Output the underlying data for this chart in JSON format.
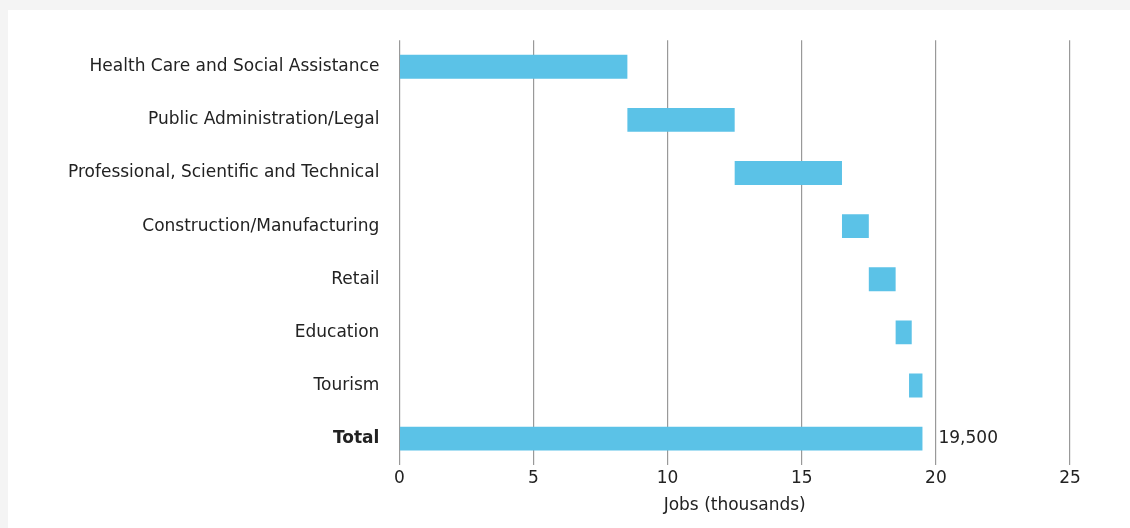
{
  "chart_data": {
    "type": "bar",
    "orientation": "horizontal",
    "xlabel": "Jobs (thousands)",
    "categories": [
      "Health Care and Social Assistance",
      "Public Administration/Legal",
      "Professional, Scientific and Technical",
      "Construction/Manufacturing",
      "Retail",
      "Education",
      "Tourism",
      "Total"
    ],
    "values": [
      8.5,
      4,
      4,
      1,
      1,
      0.6,
      0.5,
      19.5
    ],
    "base": [
      0,
      8.5,
      12.5,
      16.5,
      17.5,
      18.5,
      19,
      0
    ],
    "annotations": [
      {
        "text": "19,500",
        "x": 19.5,
        "y": "Total"
      }
    ],
    "color": "#5bc2e7",
    "xlim": [
      0,
      25
    ],
    "xticks": [
      0,
      5,
      10,
      15,
      20,
      25
    ],
    "grid": "x",
    "legend": false
  }
}
